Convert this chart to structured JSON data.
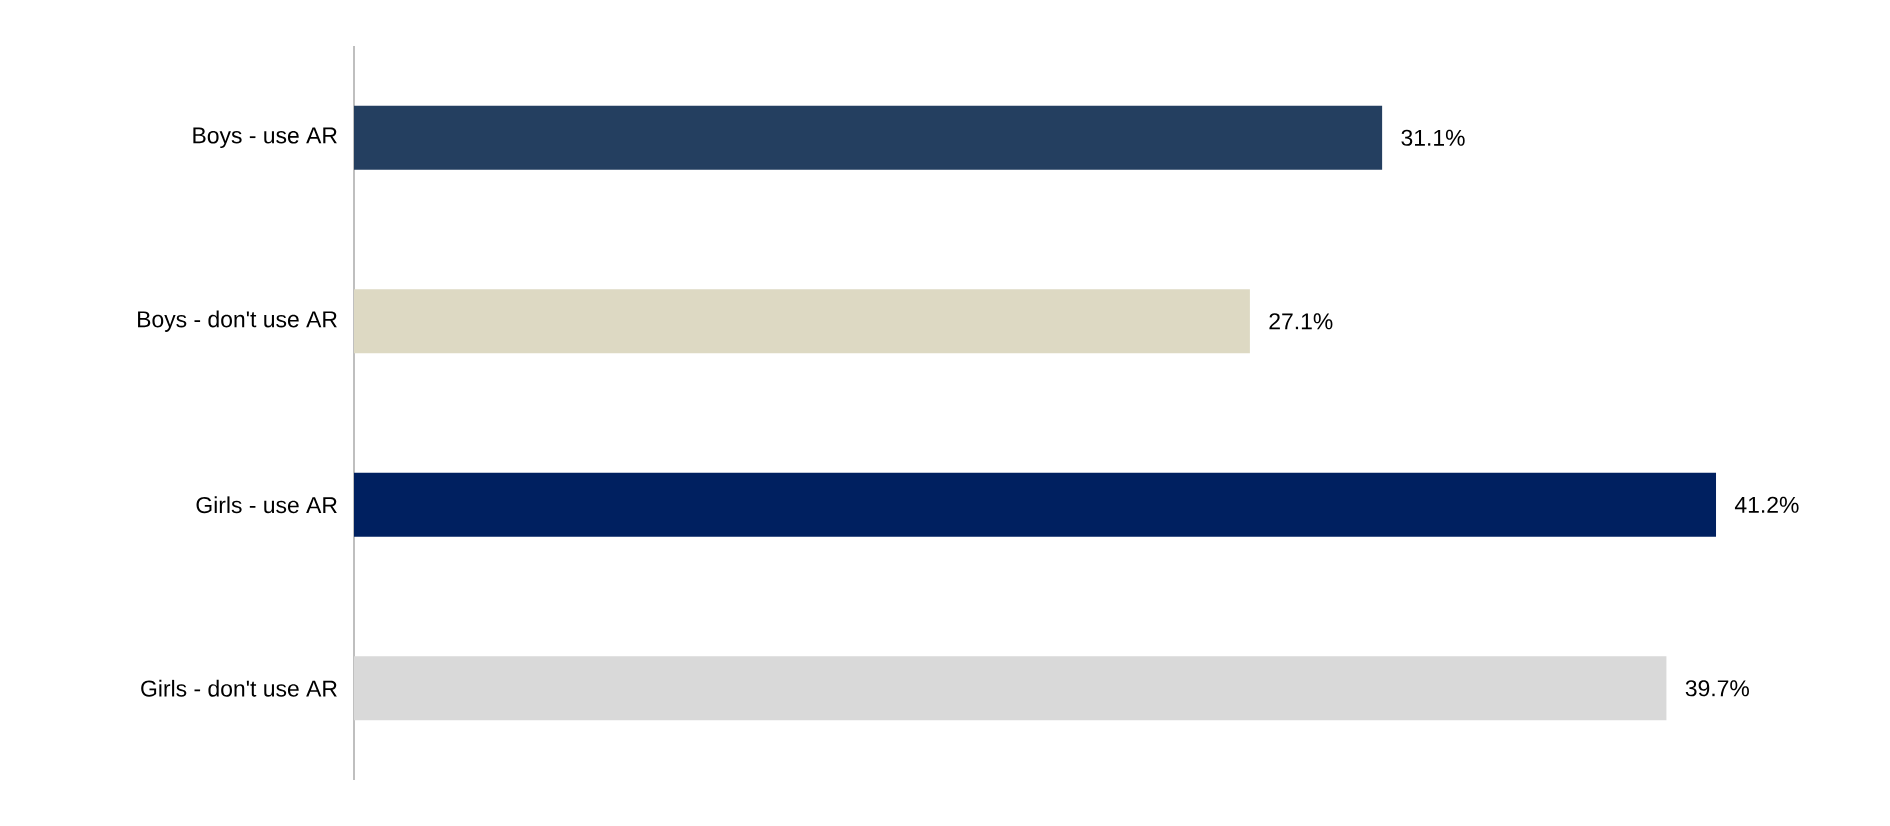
{
  "chart_data": {
    "type": "bar",
    "orientation": "horizontal",
    "categories": [
      "Boys - use AR",
      "Boys - don't use AR",
      "Girls - use AR",
      "Girls - don't use AR"
    ],
    "values": [
      31.1,
      27.1,
      41.2,
      39.7
    ],
    "colors": [
      "#243f60",
      "#ddd9c3",
      "#002060",
      "#d9d9d9"
    ],
    "value_labels": [
      "31.1%",
      "27.1%",
      "41.2%",
      "39.7%"
    ]
  }
}
